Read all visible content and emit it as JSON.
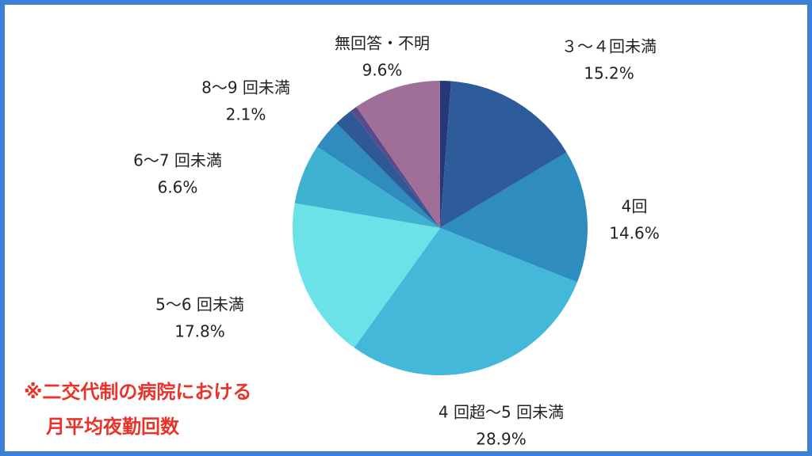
{
  "chart_data": {
    "type": "pie",
    "categories": [
      null,
      "３～４回未満",
      "4回",
      "4 回超～5 回未満",
      "5～6 回未満",
      "6～7 回未満",
      null,
      "8～9 回未満",
      null,
      "無回答・不明"
    ],
    "values": [
      1.2,
      15.2,
      14.6,
      28.9,
      17.8,
      6.6,
      3.3,
      2.1,
      0.7,
      9.6
    ],
    "value_labels": [
      null,
      "15.2%",
      "14.6%",
      "28.9%",
      "17.8%",
      "6.6%",
      null,
      "2.1%",
      null,
      "9.6%"
    ],
    "colors": [
      "#26377a",
      "#2e5b99",
      "#2f8cbf",
      "#44b8d8",
      "#6de1e8",
      "#3fb2d2",
      "#2f8cbf",
      "#2e5896",
      "#5b4a8a",
      "#a06f98"
    ],
    "annotation": [
      "※二交代制の病院における",
      "月平均夜勤回数"
    ]
  }
}
